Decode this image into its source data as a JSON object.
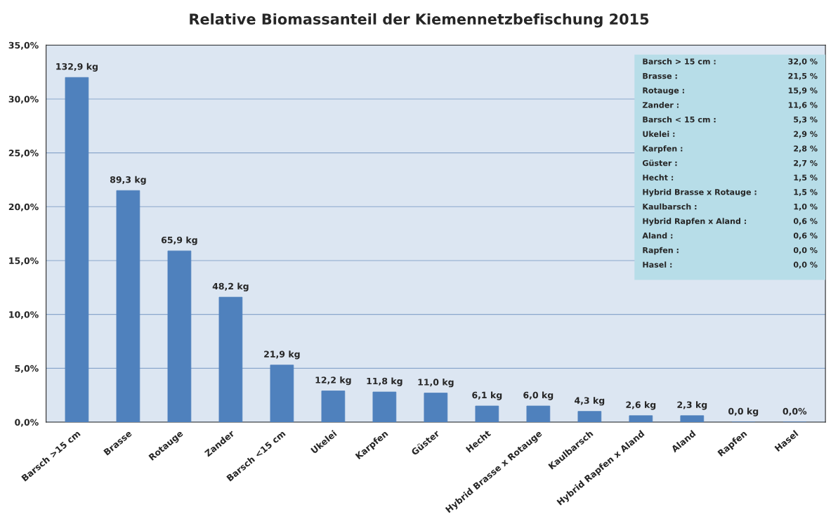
{
  "chart_data": {
    "type": "bar",
    "title": "Relative Biomassanteil der Kiemennetzbefischung 2015",
    "categories": [
      "Barsch >15 cm",
      "Brasse",
      "Rotauge",
      "Zander",
      "Barsch <15 cm",
      "Ukelei",
      "Karpfen",
      "Güster",
      "Hecht",
      "Hybrid Brasse x Rotauge",
      "Kaulbarsch",
      "Hybrid Rapfen x Aland",
      "Aland",
      "Rapfen",
      "Hasel"
    ],
    "values": [
      32.0,
      21.5,
      15.9,
      11.6,
      5.3,
      2.9,
      2.8,
      2.7,
      1.5,
      1.5,
      1.0,
      0.6,
      0.6,
      0.0,
      0.0
    ],
    "color": "#4f81bd",
    "ylim": [
      0,
      35
    ],
    "yticks": [
      {
        "value": 0,
        "label": "0,0%"
      },
      {
        "value": 5,
        "label": "5,0%"
      },
      {
        "value": 10,
        "label": "10,0%"
      },
      {
        "value": 15,
        "label": "15,0%"
      },
      {
        "value": 20,
        "label": "20,0%"
      },
      {
        "value": 25,
        "label": "25,0%"
      },
      {
        "value": 30,
        "label": "30,0%"
      },
      {
        "value": 35,
        "label": "35,0%"
      }
    ],
    "grid": "y",
    "annotations": [
      {
        "text": "132,9 kg",
        "x": "Barsch >15 cm",
        "y": 32.0
      },
      {
        "text": "89,3 kg",
        "x": "Brasse",
        "y": 21.5
      },
      {
        "text": "65,9 kg",
        "x": "Rotauge",
        "y": 15.9
      },
      {
        "text": "48,2 kg",
        "x": "Zander",
        "y": 11.6
      },
      {
        "text": "21,9 kg",
        "x": "Barsch <15 cm",
        "y": 5.3
      },
      {
        "text": "12,2 kg",
        "x": "Ukelei",
        "y": 2.9
      },
      {
        "text": "11,8 kg",
        "x": "Karpfen",
        "y": 2.8
      },
      {
        "text": "11,0 kg",
        "x": "Güster",
        "y": 2.7
      },
      {
        "text": "6,1 kg",
        "x": "Hecht",
        "y": 1.5
      },
      {
        "text": "6,0 kg",
        "x": "Hybrid Brasse x Rotauge",
        "y": 1.5
      },
      {
        "text": "4,3 kg",
        "x": "Kaulbarsch",
        "y": 1.0
      },
      {
        "text": "2,6 kg",
        "x": "Hybrid Rapfen x Aland",
        "y": 0.6
      },
      {
        "text": "2,3 kg",
        "x": "Aland",
        "y": 0.6
      },
      {
        "text": "0,0 kg",
        "x": "Rapfen",
        "y": 0.0
      },
      {
        "text": "0,0%",
        "x": "Hasel",
        "y": 0.0
      },
      "Barsch > 15 cm :",
      "32,0 %",
      "Brasse :",
      "21,5 %",
      "Rotauge :",
      "15,9 %",
      "Zander :",
      "11,6 %",
      "Barsch < 15 cm :",
      "5,3 %",
      "Ukelei :",
      "2,9 %",
      "Karpfen :",
      "2,8 %",
      "Güster :",
      "2,7 %",
      "Hecht :",
      "1,5 %",
      "Hybrid Brasse x Rotauge :",
      "1,5 %",
      "Kaulbarsch :",
      "1,0 %",
      "Hybrid Rapfen x Aland :",
      "0,6 %",
      "Aland :",
      "0,6 %",
      "Rapfen :",
      "0,0 %",
      "Hasel :",
      "0,0 %"
    ]
  }
}
